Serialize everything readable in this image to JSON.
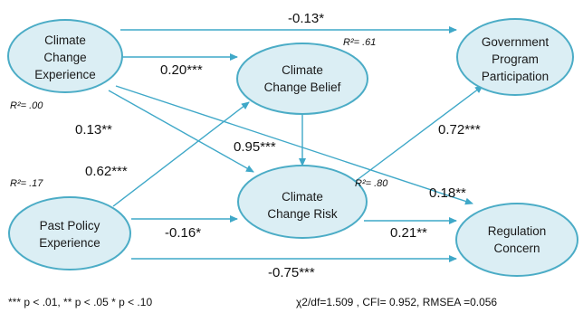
{
  "nodes": {
    "cce": [
      "Climate",
      "Change",
      "Experience"
    ],
    "ccb": [
      "Climate",
      "Change Belief"
    ],
    "gpp": [
      "Government",
      "Program",
      "Participation"
    ],
    "ppe": [
      "Past Policy",
      "Experience"
    ],
    "ccr": [
      "Climate",
      "Change Risk"
    ],
    "rc": [
      "Regulation",
      "Concern"
    ]
  },
  "coefficients": {
    "cce_gpp": "-0.13*",
    "cce_ccb": "0.20***",
    "cce_ccr": "0.13**",
    "ccb_ccr": "0.95***",
    "ppe_ccb": "0.62***",
    "ppe_ccr": "-0.16*",
    "ccr_gpp": "0.72***",
    "cce_rc": "0.18**",
    "ccr_rc": "0.21**",
    "ppe_rc": "-0.75***"
  },
  "r_squared": {
    "ccb": "R²= .61",
    "cce": "R²= .00",
    "ppe": "R²= .17",
    "ccr": "R²= .80"
  },
  "footer": {
    "significance_note": "*** p < .01, ** p < .05 * p < .10",
    "fit_stats": "χ2/df=1.509 , CFI= 0.952, RMSEA =0.056"
  },
  "colors": {
    "node_fill": "#dbeef4",
    "node_stroke": "#4bacc6",
    "arrow": "#3fa8c8"
  }
}
